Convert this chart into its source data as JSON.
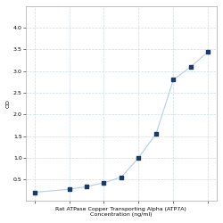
{
  "x": [
    0.0156,
    0.0625,
    0.125,
    0.25,
    0.5,
    1,
    2,
    4,
    8,
    16
  ],
  "y": [
    0.2,
    0.27,
    0.33,
    0.42,
    0.55,
    1.0,
    1.55,
    2.8,
    3.1,
    3.45
  ],
  "line_color": "#b0d0e8",
  "marker_color": "#1a3a6b",
  "marker_size": 3.5,
  "xlabel_line1": "Rat ATPase Copper Transporting Alpha (ATP7A)",
  "xlabel_line2": "Concentration (ng/ml)",
  "ylabel": "OD",
  "xlim_log": [
    -2.2,
    1.4
  ],
  "ylim": [
    0.0,
    4.5
  ],
  "yticks": [
    0.5,
    1.0,
    1.5,
    2.0,
    2.5,
    3.0,
    3.5,
    4.0
  ],
  "xtick_vals": [
    0.0156,
    0.0625,
    0.25,
    1,
    4,
    16
  ],
  "xtick_labels": [
    "",
    "",
    "",
    "",
    "",
    ""
  ],
  "grid_color": "#ccdde8",
  "background_color": "#ffffff",
  "label_fontsize": 4.5,
  "tick_fontsize": 4.5,
  "spine_color": "#aaaaaa"
}
